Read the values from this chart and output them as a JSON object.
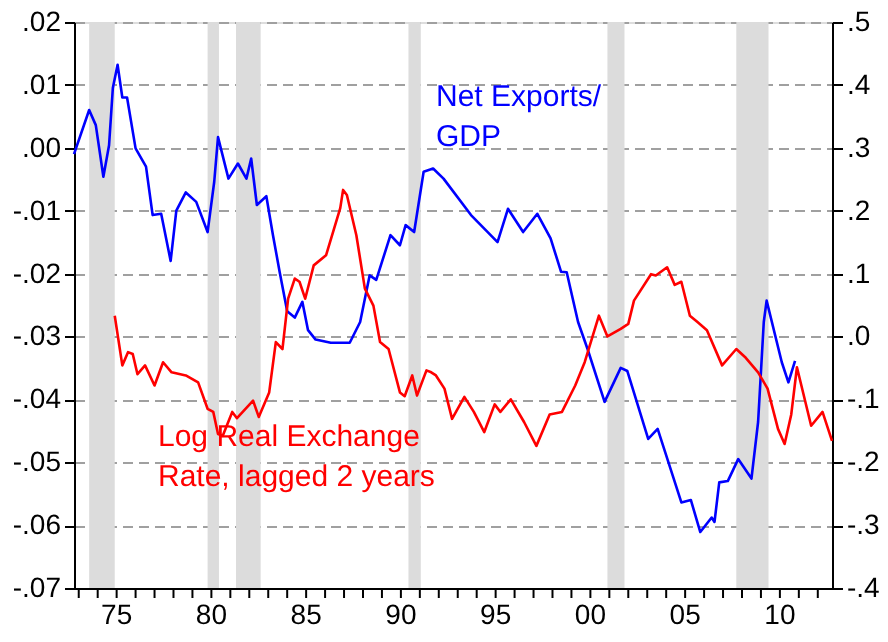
{
  "chart_data": {
    "type": "line",
    "xlim": [
      1972.75,
      2012.75
    ],
    "xticks": [
      {
        "value": 1973,
        "label": null
      },
      {
        "value": 1974,
        "label": null
      },
      {
        "value": 1975,
        "label": "75"
      },
      {
        "value": 1976,
        "label": null
      },
      {
        "value": 1977,
        "label": null
      },
      {
        "value": 1978,
        "label": null
      },
      {
        "value": 1979,
        "label": null
      },
      {
        "value": 1980,
        "label": "80"
      },
      {
        "value": 1981,
        "label": null
      },
      {
        "value": 1982,
        "label": null
      },
      {
        "value": 1983,
        "label": null
      },
      {
        "value": 1984,
        "label": null
      },
      {
        "value": 1985,
        "label": "85"
      },
      {
        "value": 1986,
        "label": null
      },
      {
        "value": 1987,
        "label": null
      },
      {
        "value": 1988,
        "label": null
      },
      {
        "value": 1989,
        "label": null
      },
      {
        "value": 1990,
        "label": "90"
      },
      {
        "value": 1991,
        "label": null
      },
      {
        "value": 1992,
        "label": null
      },
      {
        "value": 1993,
        "label": null
      },
      {
        "value": 1994,
        "label": null
      },
      {
        "value": 1995,
        "label": "95"
      },
      {
        "value": 1996,
        "label": null
      },
      {
        "value": 1997,
        "label": null
      },
      {
        "value": 1998,
        "label": null
      },
      {
        "value": 1999,
        "label": null
      },
      {
        "value": 2000,
        "label": "00"
      },
      {
        "value": 2001,
        "label": null
      },
      {
        "value": 2002,
        "label": null
      },
      {
        "value": 2003,
        "label": null
      },
      {
        "value": 2004,
        "label": null
      },
      {
        "value": 2005,
        "label": "05"
      },
      {
        "value": 2006,
        "label": null
      },
      {
        "value": 2007,
        "label": null
      },
      {
        "value": 2008,
        "label": null
      },
      {
        "value": 2009,
        "label": null
      },
      {
        "value": 2010,
        "label": "10"
      },
      {
        "value": 2011,
        "label": null
      },
      {
        "value": 2012,
        "label": null
      }
    ],
    "ylim": [
      -0.07,
      0.02
    ],
    "yticks": [
      {
        "value": 0.02,
        "label": ".02"
      },
      {
        "value": 0.01,
        "label": ".01"
      },
      {
        "value": 0,
        "label": ".00"
      },
      {
        "value": -0.01,
        "label": "-.01"
      },
      {
        "value": -0.02,
        "label": "-.02"
      },
      {
        "value": -0.03,
        "label": "-.03"
      },
      {
        "value": -0.04,
        "label": "-.04"
      },
      {
        "value": -0.05,
        "label": "-.05"
      },
      {
        "value": -0.06,
        "label": "-.06"
      },
      {
        "value": -0.07,
        "label": "-.07"
      }
    ],
    "y2lim": [
      -0.4,
      0.5
    ],
    "y2ticks": [
      {
        "value": 0.5,
        "label": ".5"
      },
      {
        "value": 0.4,
        "label": ".4"
      },
      {
        "value": 0.3,
        "label": ".3"
      },
      {
        "value": 0.2,
        "label": ".2"
      },
      {
        "value": 0.1,
        "label": ".1"
      },
      {
        "value": 0,
        "label": ".0"
      },
      {
        "value": -0.1,
        "label": "-.1"
      },
      {
        "value": -0.2,
        "label": "-.2"
      },
      {
        "value": -0.3,
        "label": "-.3"
      },
      {
        "value": -0.4,
        "label": "-.4"
      }
    ],
    "grid": "y",
    "legend": false,
    "marker": "none",
    "line_style": "solid",
    "bands": [
      {
        "axis": "x",
        "from": 1973.55,
        "to": 1974.9,
        "color": "#dcdcdc"
      },
      {
        "axis": "x",
        "from": 1979.8,
        "to": 1980.4,
        "color": "#dcdcdc"
      },
      {
        "axis": "x",
        "from": 1981.3,
        "to": 1982.6,
        "color": "#dcdcdc"
      },
      {
        "axis": "x",
        "from": 1990.4,
        "to": 1991.05,
        "color": "#dcdcdc"
      },
      {
        "axis": "x",
        "from": 2000.9,
        "to": 2001.8,
        "color": "#dcdcdc"
      },
      {
        "axis": "x",
        "from": 2007.7,
        "to": 2009.4,
        "color": "#dcdcdc"
      }
    ],
    "series": [
      {
        "name": "Net Exports/\nGDP",
        "color": "#0000ff",
        "x": [
          1972.75,
          1973.55,
          1973.9,
          1974.3,
          1974.6,
          1974.8,
          1975.05,
          1975.3,
          1975.55,
          1976.0,
          1976.55,
          1976.9,
          1977.35,
          1977.85,
          1978.15,
          1978.65,
          1979.2,
          1979.8,
          1980.15,
          1980.35,
          1980.9,
          1981.4,
          1981.85,
          1982.1,
          1982.4,
          1982.9,
          1983.25,
          1983.6,
          1984.0,
          1984.4,
          1984.8,
          1985.1,
          1985.5,
          1986.3,
          1987.3,
          1987.85,
          1988.35,
          1988.7,
          1989.45,
          1989.95,
          1990.25,
          1990.7,
          1991.2,
          1991.7,
          1992.25,
          1993.7,
          1995.1,
          1995.65,
          1996.45,
          1997.2,
          1997.9,
          1998.45,
          1998.75,
          1999.35,
          1999.85,
          2000.75,
          2001.6,
          2001.95,
          2003.05,
          2003.55,
          2004.8,
          2005.3,
          2005.8,
          2006.4,
          2006.55,
          2006.8,
          2007.25,
          2007.8,
          2008.5,
          2008.85,
          2009.15,
          2009.3,
          2010.1,
          2010.45,
          2010.8
        ],
        "values": [
          -0.001,
          0.006,
          0.0036,
          -0.0046,
          0.0004,
          0.0095,
          0.0132,
          0.008,
          0.008,
          -0.0001,
          -0.003,
          -0.0107,
          -0.0105,
          -0.018,
          -0.01,
          -0.0071,
          -0.0086,
          -0.0134,
          -0.0054,
          0.0017,
          -0.0049,
          -0.0025,
          -0.0049,
          -0.0017,
          -0.0091,
          -0.0077,
          -0.0139,
          -0.0197,
          -0.026,
          -0.027,
          -0.0245,
          -0.029,
          -0.0305,
          -0.031,
          -0.031,
          -0.0277,
          -0.0203,
          -0.021,
          -0.0139,
          -0.0155,
          -0.0123,
          -0.0134,
          -0.0038,
          -0.0033,
          -0.0049,
          -0.0107,
          -0.015,
          -0.0097,
          -0.0134,
          -0.0105,
          -0.0144,
          -0.0197,
          -0.0198,
          -0.0277,
          -0.032,
          -0.0404,
          -0.035,
          -0.0355,
          -0.0463,
          -0.0447,
          -0.0564,
          -0.056,
          -0.0611,
          -0.0588,
          -0.0595,
          -0.0532,
          -0.053,
          -0.0495,
          -0.0526,
          -0.0436,
          -0.0277,
          -0.0243,
          -0.0341,
          -0.0373,
          -0.0339
        ]
      },
      {
        "name": "Log Real Exchange\nRate, lagged 2 years",
        "color": "#ff0000",
        "axis": "y2",
        "x": [
          1974.9,
          1975.3,
          1975.6,
          1975.85,
          1976.1,
          1976.5,
          1977.0,
          1977.45,
          1977.9,
          1978.65,
          1979.3,
          1979.8,
          1980.1,
          1980.35,
          1980.6,
          1981.1,
          1981.35,
          1982.2,
          1982.5,
          1983.05,
          1983.4,
          1983.75,
          1984.05,
          1984.4,
          1984.65,
          1984.95,
          1985.4,
          1986.05,
          1986.8,
          1986.95,
          1987.15,
          1987.65,
          1988.1,
          1988.55,
          1988.9,
          1989.35,
          1989.95,
          1990.2,
          1990.6,
          1990.85,
          1991.35,
          1991.6,
          1991.85,
          1992.3,
          1992.7,
          1993.35,
          1993.85,
          1994.4,
          1994.95,
          1995.25,
          1995.8,
          1996.5,
          1997.15,
          1997.85,
          1998.5,
          1999.2,
          1999.7,
          2000.45,
          2000.9,
          2001.6,
          2002.0,
          2002.3,
          2003.2,
          2003.45,
          2004.05,
          2004.45,
          2004.8,
          2005.25,
          2005.65,
          2006.15,
          2006.95,
          2007.7,
          2008.2,
          2008.85,
          2009.35,
          2009.9,
          2010.25,
          2010.6,
          2010.9,
          2011.65,
          2012.25,
          2012.75
        ],
        "values": [
          0.033,
          -0.046,
          -0.025,
          -0.028,
          -0.06,
          -0.046,
          -0.078,
          -0.041,
          -0.057,
          -0.062,
          -0.073,
          -0.115,
          -0.12,
          -0.155,
          -0.158,
          -0.12,
          -0.13,
          -0.102,
          -0.128,
          -0.089,
          -0.009,
          -0.02,
          0.06,
          0.092,
          0.087,
          0.06,
          0.113,
          0.129,
          0.204,
          0.233,
          0.225,
          0.161,
          0.076,
          0.049,
          -0.009,
          -0.02,
          -0.089,
          -0.095,
          -0.062,
          -0.094,
          -0.054,
          -0.057,
          -0.062,
          -0.083,
          -0.131,
          -0.096,
          -0.12,
          -0.152,
          -0.108,
          -0.12,
          -0.1,
          -0.136,
          -0.174,
          -0.124,
          -0.12,
          -0.078,
          -0.041,
          0.033,
          0.0,
          0.012,
          0.02,
          0.057,
          0.099,
          0.097,
          0.11,
          0.082,
          0.087,
          0.033,
          0.023,
          0.01,
          -0.046,
          -0.02,
          -0.034,
          -0.057,
          -0.083,
          -0.147,
          -0.171,
          -0.124,
          -0.049,
          -0.142,
          -0.12,
          -0.166
        ]
      }
    ]
  }
}
